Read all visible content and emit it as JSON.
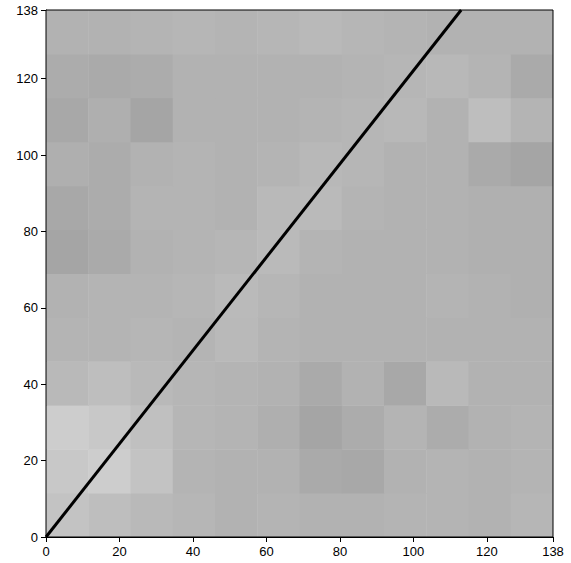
{
  "chart_data": {
    "type": "heatmap",
    "x_edges": [
      0,
      11.5,
      23,
      34.5,
      46,
      57.5,
      69,
      80.5,
      92,
      103.5,
      115,
      126.5,
      138
    ],
    "y_edges": [
      0,
      11.5,
      23,
      34.5,
      46,
      57.5,
      69,
      80.5,
      92,
      103.5,
      115,
      126.5,
      138
    ],
    "cells": [
      [
        195,
        190,
        185,
        182,
        178,
        180,
        178,
        178,
        180,
        180,
        178,
        182
      ],
      [
        200,
        205,
        195,
        180,
        178,
        178,
        170,
        168,
        178,
        180,
        178,
        180
      ],
      [
        205,
        200,
        192,
        182,
        180,
        175,
        165,
        172,
        180,
        172,
        178,
        180
      ],
      [
        185,
        190,
        185,
        182,
        180,
        178,
        170,
        178,
        168,
        185,
        178,
        178
      ],
      [
        180,
        180,
        182,
        180,
        185,
        180,
        178,
        178,
        178,
        178,
        178,
        178
      ],
      [
        178,
        180,
        180,
        182,
        186,
        182,
        178,
        178,
        178,
        180,
        178,
        176
      ],
      [
        165,
        170,
        178,
        180,
        182,
        186,
        180,
        178,
        178,
        178,
        176,
        176
      ],
      [
        168,
        172,
        180,
        180,
        178,
        185,
        186,
        180,
        178,
        178,
        176,
        176
      ],
      [
        175,
        172,
        178,
        180,
        178,
        180,
        184,
        182,
        178,
        178,
        170,
        165
      ],
      [
        168,
        175,
        165,
        178,
        178,
        178,
        180,
        182,
        184,
        178,
        190,
        180
      ],
      [
        172,
        170,
        172,
        178,
        178,
        178,
        178,
        180,
        182,
        184,
        180,
        170
      ],
      [
        178,
        178,
        180,
        182,
        180,
        182,
        185,
        182,
        180,
        178,
        178,
        178
      ]
    ],
    "color_range": [
      0,
      255
    ],
    "xlim": [
      0,
      138
    ],
    "ylim": [
      0,
      138
    ],
    "xticks": [
      0,
      20,
      40,
      60,
      80,
      100,
      120
    ],
    "yticks": [
      0,
      20,
      40,
      60,
      80,
      100,
      120
    ],
    "series": [
      {
        "type": "line",
        "color": "#000000",
        "x": [
          0,
          113
        ],
        "values": [
          0,
          138
        ]
      }
    ]
  }
}
